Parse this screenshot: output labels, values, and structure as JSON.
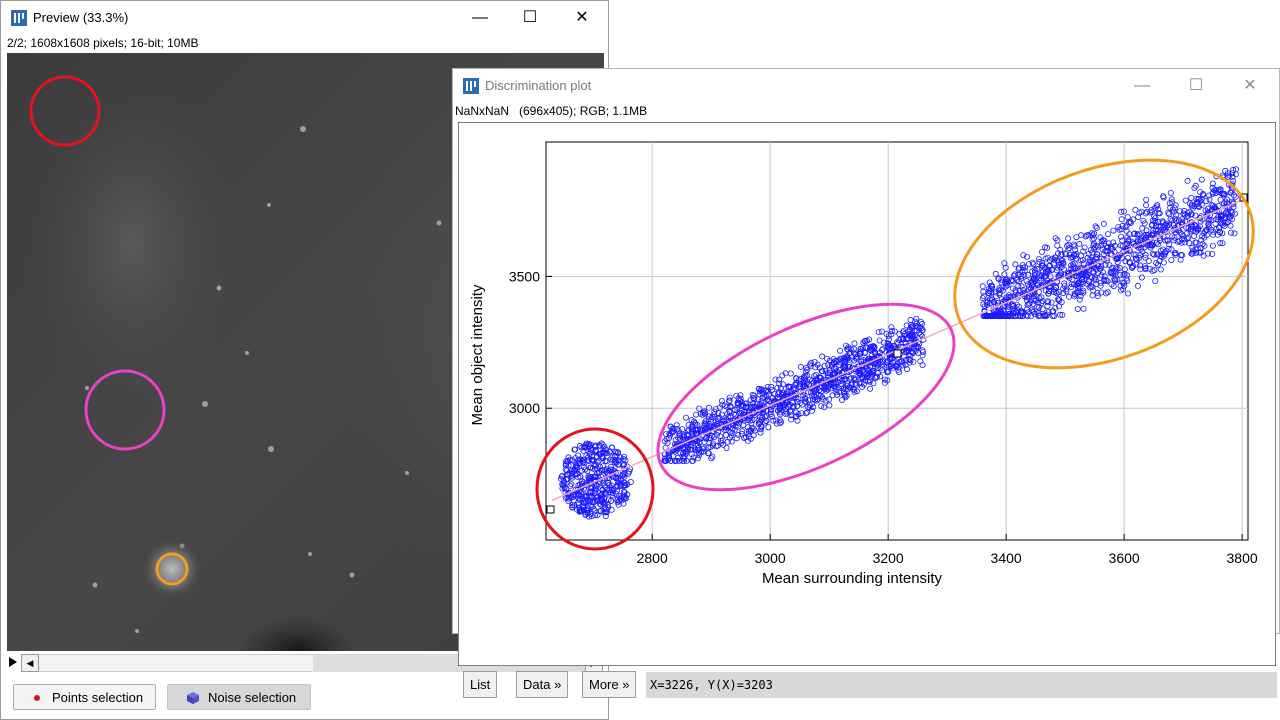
{
  "preview_window": {
    "title": "Preview (33.3%)",
    "info": "2/2; 1608x1608 pixels; 16-bit; 10MB",
    "buttons": {
      "points": "Points selection",
      "noise": "Noise selection"
    },
    "controls": {
      "minimize": "minimize-icon",
      "maximize": "maximize-icon",
      "close": "close-icon"
    }
  },
  "plot_window": {
    "title": "Discrimination plot",
    "info": "NaNxNaN   (696x405); RGB; 1.1MB",
    "buttons": {
      "list": "List",
      "data": "Data »",
      "more": "More »"
    },
    "status": "X=3226, Y(X)=3203"
  },
  "annotation_colors": {
    "red": "#e5121c",
    "magenta": "#ec40c6",
    "orange": "#f49a1c"
  },
  "chart_data": {
    "type": "scatter",
    "xlabel": "Mean surrounding intensity",
    "ylabel": "Mean object intensity",
    "xlim": [
      2620,
      3810
    ],
    "ylim": [
      2500,
      4010
    ],
    "xticks": [
      2800,
      3000,
      3200,
      3400,
      3600,
      3800
    ],
    "yticks": [
      3000,
      3500
    ],
    "grid": true,
    "series_color": "#1a1aff",
    "fit_line": {
      "x": [
        2630,
        3800
      ],
      "y": [
        2650,
        3790
      ],
      "color": "#f7a8b8"
    },
    "clusters": [
      {
        "x_range": [
          2650,
          2770
        ],
        "y_range": [
          2590,
          2880
        ],
        "center": [
          2705,
          2730
        ]
      },
      {
        "x_range": [
          2820,
          3260
        ],
        "y_range": [
          2800,
          3340
        ],
        "center": [
          3040,
          3050
        ]
      },
      {
        "x_range": [
          3360,
          3790
        ],
        "y_range": [
          3350,
          3980
        ],
        "center": [
          3580,
          3640
        ]
      }
    ]
  }
}
